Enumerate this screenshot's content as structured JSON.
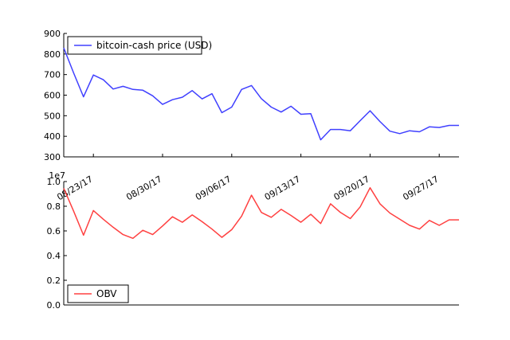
{
  "chart_data": [
    {
      "type": "line",
      "legend": {
        "label": "bitcoin-cash price (USD)",
        "placement": "top-left"
      },
      "series": [
        {
          "name": "bitcoin-cash price (USD)",
          "color": "#4040ff",
          "x": [
            0,
            1,
            2,
            3,
            4,
            5,
            6,
            7,
            8,
            9,
            10,
            11,
            12,
            13,
            14,
            15,
            16,
            17,
            18,
            19,
            20,
            21,
            22,
            23,
            24,
            25,
            26,
            27,
            28,
            29,
            30,
            31,
            32,
            33,
            34,
            35,
            36,
            37,
            38,
            39,
            40
          ],
          "values": [
            830,
            708,
            592,
            698,
            675,
            630,
            643,
            628,
            624,
            597,
            555,
            578,
            590,
            622,
            582,
            607,
            515,
            542,
            628,
            647,
            583,
            542,
            518,
            546,
            507,
            510,
            383,
            433,
            433,
            427,
            476,
            524,
            472,
            425,
            413,
            427,
            422,
            446,
            443,
            453,
            453
          ]
        }
      ],
      "xlim": [
        0,
        40
      ],
      "ylim": [
        300,
        900
      ],
      "yticks": [
        "300",
        "400",
        "500",
        "600",
        "700",
        "800",
        "900"
      ],
      "xticks": [
        {
          "pos": 3,
          "label": "08/23/17"
        },
        {
          "pos": 10,
          "label": "08/30/17"
        },
        {
          "pos": 17,
          "label": "09/06/17"
        },
        {
          "pos": 24,
          "label": "09/13/17"
        },
        {
          "pos": 31,
          "label": "09/20/17"
        },
        {
          "pos": 38,
          "label": "09/27/17"
        }
      ],
      "grid": false
    },
    {
      "type": "line",
      "legend": {
        "label": "OBV",
        "placement": "bottom-left"
      },
      "series": [
        {
          "name": "OBV",
          "color": "#ff4040",
          "x": [
            0,
            1,
            2,
            3,
            4,
            5,
            6,
            7,
            8,
            9,
            10,
            11,
            12,
            13,
            14,
            15,
            16,
            17,
            18,
            19,
            20,
            21,
            22,
            23,
            24,
            25,
            26,
            27,
            28,
            29,
            30,
            31,
            32,
            33,
            34,
            35,
            36,
            37,
            38,
            39,
            40
          ],
          "values": [
            0.945,
            0.76,
            0.565,
            0.765,
            0.695,
            0.63,
            0.57,
            0.54,
            0.605,
            0.57,
            0.64,
            0.715,
            0.67,
            0.73,
            0.675,
            0.615,
            0.548,
            0.61,
            0.72,
            0.89,
            0.75,
            0.71,
            0.775,
            0.725,
            0.67,
            0.735,
            0.66,
            0.82,
            0.75,
            0.7,
            0.795,
            0.95,
            0.82,
            0.745,
            0.695,
            0.645,
            0.615,
            0.685,
            0.645,
            0.69,
            0.69
          ]
        }
      ],
      "xlim": [
        0,
        40
      ],
      "ylim": [
        0.0,
        1.0
      ],
      "yticks": [
        "0.0",
        "0.2",
        "0.4",
        "0.6",
        "0.8",
        "1.0"
      ],
      "y_offset_label": "1e7",
      "grid": false
    }
  ]
}
